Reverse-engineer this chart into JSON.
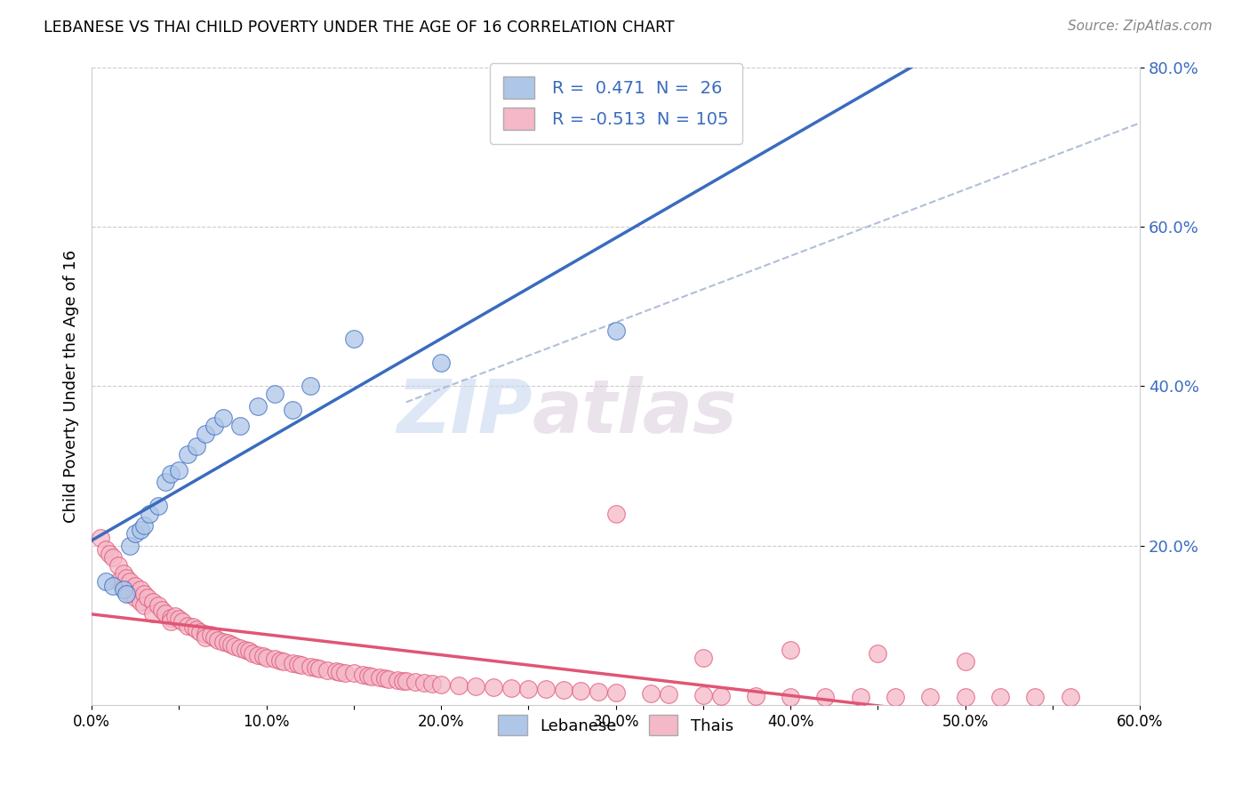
{
  "title": "LEBANESE VS THAI CHILD POVERTY UNDER THE AGE OF 16 CORRELATION CHART",
  "source": "Source: ZipAtlas.com",
  "ylabel": "Child Poverty Under the Age of 16",
  "xlim": [
    0.0,
    0.6
  ],
  "ylim": [
    0.0,
    0.8
  ],
  "xtick_labels": [
    "0.0%",
    "",
    "10.0%",
    "",
    "20.0%",
    "",
    "30.0%",
    "",
    "40.0%",
    "",
    "50.0%",
    "",
    "60.0%"
  ],
  "xtick_vals": [
    0.0,
    0.05,
    0.1,
    0.15,
    0.2,
    0.25,
    0.3,
    0.35,
    0.4,
    0.45,
    0.5,
    0.55,
    0.6
  ],
  "ytick_vals": [
    0.2,
    0.4,
    0.6,
    0.8
  ],
  "ytick_labels": [
    "20.0%",
    "40.0%",
    "60.0%",
    "80.0%"
  ],
  "lebanese_R": 0.471,
  "lebanese_N": 26,
  "thai_R": -0.513,
  "thai_N": 105,
  "lebanese_color": "#aec6e8",
  "thai_color": "#f4b8c8",
  "lebanese_line_color": "#3a6bbf",
  "thai_line_color": "#e05575",
  "legend_lebanese_label": "Lebanese",
  "legend_thai_label": "Thais",
  "watermark_zip": "ZIP",
  "watermark_atlas": "atlas",
  "dash_line_color": "#b0bfd8",
  "lebanese_scatter_x": [
    0.008,
    0.012,
    0.018,
    0.02,
    0.022,
    0.025,
    0.028,
    0.03,
    0.033,
    0.038,
    0.042,
    0.045,
    0.05,
    0.055,
    0.06,
    0.065,
    0.07,
    0.075,
    0.085,
    0.095,
    0.105,
    0.115,
    0.125,
    0.15,
    0.2,
    0.3
  ],
  "lebanese_scatter_y": [
    0.155,
    0.15,
    0.145,
    0.14,
    0.2,
    0.215,
    0.22,
    0.225,
    0.24,
    0.25,
    0.28,
    0.29,
    0.295,
    0.315,
    0.325,
    0.34,
    0.35,
    0.36,
    0.35,
    0.375,
    0.39,
    0.37,
    0.4,
    0.46,
    0.43,
    0.47
  ],
  "thai_scatter_x": [
    0.005,
    0.008,
    0.01,
    0.012,
    0.015,
    0.015,
    0.018,
    0.018,
    0.02,
    0.02,
    0.022,
    0.022,
    0.025,
    0.025,
    0.028,
    0.028,
    0.03,
    0.03,
    0.032,
    0.035,
    0.035,
    0.038,
    0.04,
    0.042,
    0.045,
    0.045,
    0.048,
    0.05,
    0.052,
    0.055,
    0.058,
    0.06,
    0.062,
    0.065,
    0.065,
    0.068,
    0.07,
    0.072,
    0.075,
    0.078,
    0.08,
    0.082,
    0.085,
    0.088,
    0.09,
    0.092,
    0.095,
    0.098,
    0.1,
    0.105,
    0.108,
    0.11,
    0.115,
    0.118,
    0.12,
    0.125,
    0.128,
    0.13,
    0.135,
    0.14,
    0.142,
    0.145,
    0.15,
    0.155,
    0.158,
    0.16,
    0.165,
    0.168,
    0.17,
    0.175,
    0.178,
    0.18,
    0.185,
    0.19,
    0.195,
    0.2,
    0.21,
    0.22,
    0.23,
    0.24,
    0.25,
    0.26,
    0.27,
    0.28,
    0.29,
    0.3,
    0.32,
    0.33,
    0.35,
    0.36,
    0.38,
    0.4,
    0.42,
    0.44,
    0.46,
    0.48,
    0.5,
    0.52,
    0.54,
    0.56,
    0.3,
    0.35,
    0.4,
    0.45,
    0.5
  ],
  "thai_scatter_y": [
    0.21,
    0.195,
    0.19,
    0.185,
    0.175,
    0.155,
    0.165,
    0.15,
    0.16,
    0.145,
    0.155,
    0.14,
    0.15,
    0.135,
    0.145,
    0.13,
    0.14,
    0.125,
    0.135,
    0.13,
    0.115,
    0.125,
    0.12,
    0.115,
    0.11,
    0.105,
    0.112,
    0.108,
    0.105,
    0.1,
    0.098,
    0.095,
    0.092,
    0.09,
    0.085,
    0.088,
    0.085,
    0.082,
    0.08,
    0.078,
    0.076,
    0.074,
    0.072,
    0.07,
    0.068,
    0.065,
    0.063,
    0.062,
    0.06,
    0.058,
    0.056,
    0.055,
    0.053,
    0.052,
    0.05,
    0.048,
    0.047,
    0.046,
    0.044,
    0.043,
    0.042,
    0.041,
    0.04,
    0.038,
    0.037,
    0.036,
    0.035,
    0.034,
    0.033,
    0.032,
    0.031,
    0.03,
    0.029,
    0.028,
    0.027,
    0.026,
    0.025,
    0.024,
    0.023,
    0.022,
    0.021,
    0.02,
    0.019,
    0.018,
    0.017,
    0.016,
    0.015,
    0.014,
    0.013,
    0.012,
    0.011,
    0.01,
    0.01,
    0.01,
    0.01,
    0.01,
    0.01,
    0.01,
    0.01,
    0.01,
    0.24,
    0.06,
    0.07,
    0.065,
    0.055
  ]
}
